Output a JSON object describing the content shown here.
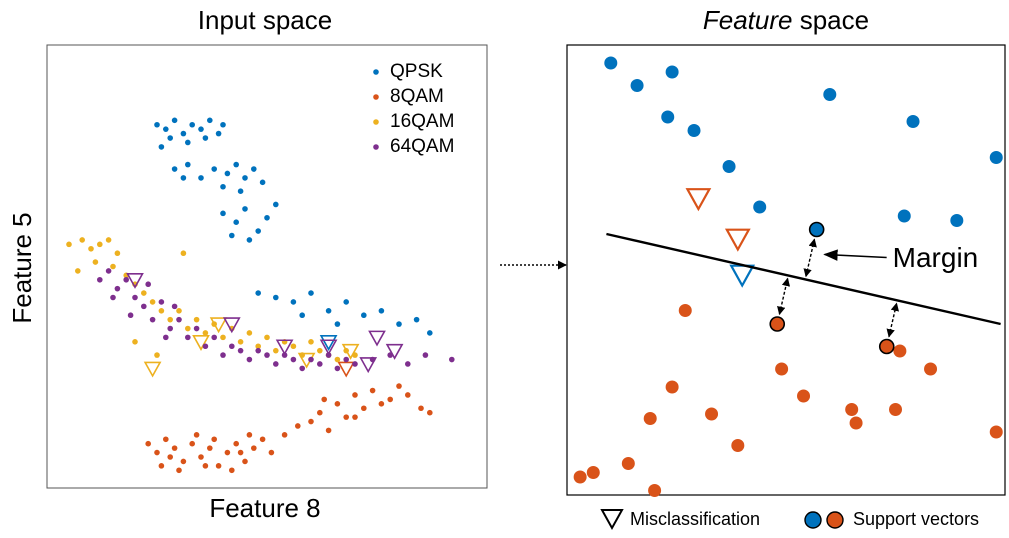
{
  "chart_data": [
    {
      "type": "scatter",
      "title": "Input space",
      "xlabel": "Feature 8",
      "ylabel": "Feature 5",
      "xlim": [
        0,
        100
      ],
      "ylim": [
        0,
        100
      ],
      "legend": "upper right",
      "series": [
        {
          "name": "QPSK",
          "color": "#0072bd",
          "x": [
            25,
            27,
            29,
            31,
            33,
            35,
            37,
            39,
            40,
            28,
            32,
            36,
            26,
            29,
            32,
            35,
            38,
            41,
            43,
            45,
            47,
            31,
            40,
            44,
            49,
            40,
            43,
            45,
            48,
            50,
            46,
            52,
            42,
            48,
            52,
            56,
            60,
            64,
            68,
            72,
            76,
            80,
            84,
            87,
            58,
            66
          ],
          "y": [
            82,
            81,
            83,
            80,
            82,
            81,
            83,
            80,
            82,
            79,
            78,
            79,
            77,
            72,
            73,
            70,
            72,
            71,
            73,
            70,
            72,
            70,
            68,
            67,
            69,
            62,
            60,
            63,
            58,
            61,
            56,
            64,
            57,
            44,
            43,
            42,
            44,
            40,
            42,
            39,
            40,
            37,
            38,
            35,
            39,
            37
          ],
          "misclassified": {
            "x": [
              64
            ],
            "y": [
              33
            ]
          }
        },
        {
          "name": "8QAM",
          "color": "#d95319",
          "x": [
            23,
            25,
            27,
            29,
            31,
            33,
            35,
            37,
            39,
            41,
            43,
            45,
            47,
            49,
            51,
            26,
            30,
            34,
            38,
            42,
            46,
            28,
            36,
            44,
            54,
            57,
            60,
            62,
            64,
            66,
            68,
            70,
            72,
            74,
            76,
            78,
            80,
            82,
            85,
            87,
            63,
            70
          ],
          "y": [
            10,
            8,
            11,
            9,
            6,
            10,
            7,
            9,
            5,
            8,
            10,
            6,
            9,
            11,
            8,
            5,
            4,
            12,
            11,
            4,
            12,
            7,
            5,
            8,
            12,
            14,
            15,
            17,
            13,
            19,
            16,
            21,
            18,
            22,
            19,
            20,
            23,
            21,
            18,
            17,
            20,
            16
          ],
          "misclassified": {
            "x": [
              68
            ],
            "y": [
              27
            ]
          }
        },
        {
          "name": "16QAM",
          "color": "#edb120",
          "x": [
            5,
            8,
            10,
            12,
            14,
            16,
            7,
            11,
            15,
            18,
            20,
            22,
            24,
            26,
            28,
            30,
            32,
            34,
            36,
            38,
            40,
            42,
            44,
            46,
            48,
            50,
            52,
            54,
            56,
            58,
            60,
            62,
            64,
            66,
            68,
            70,
            20,
            25,
            31
          ],
          "y": [
            55,
            56,
            54,
            55,
            56,
            53,
            49,
            51,
            50,
            48,
            46,
            44,
            42,
            40,
            38,
            40,
            36,
            38,
            35,
            37,
            34,
            36,
            33,
            35,
            32,
            34,
            31,
            33,
            32,
            30,
            33,
            31,
            30,
            29,
            31,
            30,
            33,
            30,
            53
          ],
          "misclassified": {
            "x": [
              24,
              35,
              39,
              59,
              69
            ],
            "y": [
              27,
              33,
              37,
              29,
              31
            ]
          }
        },
        {
          "name": "64QAM",
          "color": "#7e2f8e",
          "x": [
            12,
            14,
            16,
            18,
            15,
            20,
            22,
            19,
            24,
            26,
            28,
            30,
            27,
            32,
            34,
            36,
            38,
            40,
            42,
            44,
            46,
            48,
            50,
            52,
            54,
            56,
            58,
            60,
            62,
            64,
            66,
            68,
            70,
            74,
            78,
            82,
            86,
            92,
            23,
            29
          ],
          "y": [
            47,
            49,
            45,
            47,
            43,
            43,
            41,
            39,
            38,
            42,
            36,
            38,
            34,
            34,
            36,
            32,
            34,
            30,
            32,
            31,
            29,
            31,
            30,
            28,
            30,
            29,
            27,
            29,
            28,
            30,
            27,
            29,
            28,
            29,
            30,
            28,
            30,
            29,
            46,
            41
          ],
          "misclassified": {
            "x": [
              20,
              42,
              54,
              64,
              73,
              79,
              75
            ],
            "y": [
              47,
              37,
              32,
              32,
              28,
              31,
              34
            ]
          }
        }
      ]
    },
    {
      "type": "scatter",
      "title": [
        "Feature",
        "space"
      ],
      "xlim": [
        0,
        100
      ],
      "ylim": [
        0,
        100
      ],
      "annotation": "Margin",
      "legend": [
        "Misclassification",
        "Support vectors"
      ],
      "boundary": {
        "x": [
          9,
          99
        ],
        "y": [
          58,
          38
        ]
      },
      "series": [
        {
          "color": "#0072bd",
          "x": [
            10,
            16,
            24,
            23,
            29,
            37,
            60,
            79,
            98,
            44,
            77,
            89
          ],
          "y": [
            96,
            91,
            94,
            84,
            81,
            73,
            89,
            83,
            75,
            64,
            62,
            61
          ],
          "support": {
            "x": [
              57
            ],
            "y": [
              59
            ]
          },
          "misclassified": {
            "x": [
              40
            ],
            "y": [
              49
            ]
          }
        },
        {
          "color": "#d95319",
          "x": [
            27,
            76,
            49,
            83,
            24,
            54,
            65,
            19,
            33,
            66,
            75,
            39,
            98,
            14,
            6,
            3,
            20
          ],
          "y": [
            41,
            32,
            28,
            28,
            24,
            22,
            19,
            17,
            18,
            16,
            19,
            11,
            14,
            7,
            5,
            4,
            1
          ],
          "support": {
            "x": [
              48,
              73
            ],
            "y": [
              38,
              33
            ]
          },
          "misclassified": {
            "x": [
              30,
              39
            ],
            "y": [
              66,
              57
            ]
          }
        }
      ]
    }
  ]
}
